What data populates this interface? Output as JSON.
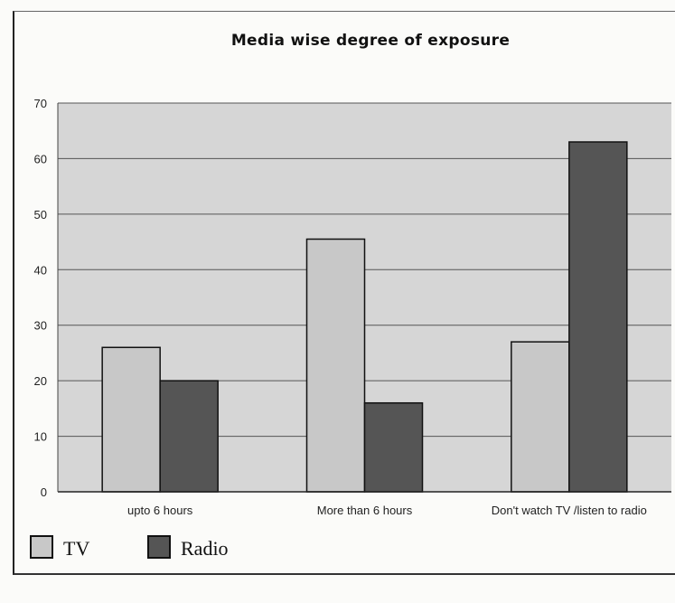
{
  "chart_data": {
    "type": "bar",
    "title": "Media wise degree of exposure",
    "categories": [
      "upto 6 hours",
      "More than 6 hours",
      "Don't watch TV /listen to radio"
    ],
    "series": [
      {
        "name": "TV",
        "values": [
          26,
          45.5,
          27
        ],
        "color": "#c8c8c8"
      },
      {
        "name": "Radio",
        "values": [
          20,
          16,
          63
        ],
        "color": "#555555"
      }
    ],
    "ylim": [
      0,
      70
    ],
    "yticks": [
      0,
      10,
      20,
      30,
      40,
      50,
      60,
      70
    ],
    "grid": true,
    "legend_position": "bottom-left",
    "plot_background": "#d6d6d6"
  }
}
